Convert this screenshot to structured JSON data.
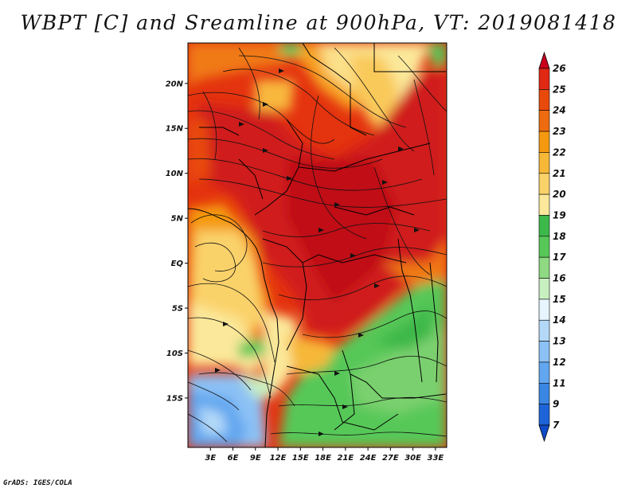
{
  "title": "WBPT [C] and Sreamline at 900hPa, VT: 2019081418",
  "credit": "GrADS: IGES/COLA",
  "map": {
    "lat_labels": [
      "20N",
      "15N",
      "10N",
      "5N",
      "EQ",
      "5S",
      "10S",
      "15S"
    ],
    "lon_labels": [
      "3E",
      "6E",
      "9E",
      "12E",
      "15E",
      "18E",
      "21E",
      "24E",
      "27E",
      "30E",
      "33E"
    ],
    "lat_range": [
      -20.5,
      24.5
    ],
    "lon_range": [
      0,
      34.5
    ]
  },
  "colorbar": {
    "labels": [
      "26",
      "25",
      "24",
      "23",
      "22",
      "21",
      "20",
      "19",
      "18",
      "17",
      "16",
      "15",
      "14",
      "13",
      "12",
      "11",
      "9",
      "7"
    ],
    "colors": {
      "bands": [
        "#c8001e",
        "#e02814",
        "#e84a0c",
        "#ef6b10",
        "#f59a10",
        "#f7b838",
        "#fad26a",
        "#fbe89a",
        "#3db84a",
        "#57c858",
        "#8ed982",
        "#c8efc0",
        "#e6f5ff",
        "#b4d9f8",
        "#8cc1f5",
        "#61a6ef",
        "#3a86e3",
        "#1e64d8",
        "#0e4cc8"
      ]
    }
  }
}
